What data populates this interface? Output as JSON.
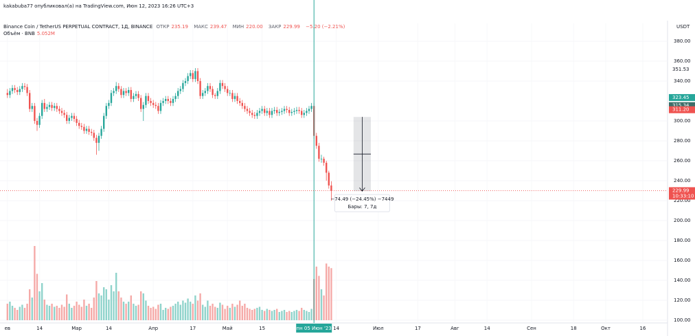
{
  "header": {
    "author_line": "kakabuba77 опубликовал(а) на TradingView.com, Июн 12, 2023 16:26 UTC+3"
  },
  "chart_data": {
    "type": "candlestick",
    "title": "Binance Coin / TetherUS PERPETUAL CONTRACT, 1Д, BINANCE",
    "ohlc_legend": [
      {
        "name": "ОТКР",
        "value": "235.19"
      },
      {
        "name": "МАКС",
        "value": "239.47"
      },
      {
        "name": "МИН",
        "value": "220.00"
      },
      {
        "name": "ЗАКР",
        "value": "229.99"
      }
    ],
    "change": "−5.20 (−2.21%)",
    "volume_legend": {
      "name": "Объём · BNB",
      "value": "5.052M"
    },
    "currency": "USDT",
    "up_color": "#26a69a",
    "down_color": "#ef5350",
    "volume_up_color": "#8fd3cb",
    "volume_down_color": "#f5a9a7",
    "grid": true,
    "candles": [
      [
        328,
        332,
        323,
        326
      ],
      [
        326,
        333,
        323,
        330
      ],
      [
        330,
        336,
        327,
        333
      ],
      [
        333,
        336,
        328,
        331
      ],
      [
        331,
        334,
        326,
        329
      ],
      [
        329,
        335,
        326,
        332
      ],
      [
        332,
        338,
        329,
        335
      ],
      [
        335,
        338,
        331,
        334
      ],
      [
        334,
        337,
        325,
        328
      ],
      [
        328,
        331,
        309,
        312
      ],
      [
        312,
        318,
        309,
        315
      ],
      [
        315,
        318,
        297,
        300
      ],
      [
        300,
        303,
        290,
        296
      ],
      [
        296,
        308,
        293,
        305
      ],
      [
        305,
        321,
        302,
        318
      ],
      [
        318,
        322,
        309,
        312
      ],
      [
        312,
        317,
        309,
        314
      ],
      [
        314,
        319,
        311,
        316
      ],
      [
        316,
        319,
        310,
        313
      ],
      [
        313,
        318,
        310,
        315
      ],
      [
        315,
        318,
        309,
        312
      ],
      [
        312,
        315,
        307,
        310
      ],
      [
        310,
        313,
        305,
        308
      ],
      [
        308,
        311,
        303,
        306
      ],
      [
        306,
        309,
        297,
        300
      ],
      [
        300,
        306,
        297,
        303
      ],
      [
        303,
        308,
        300,
        305
      ],
      [
        305,
        308,
        299,
        302
      ],
      [
        302,
        305,
        295,
        298
      ],
      [
        298,
        301,
        292,
        295
      ],
      [
        295,
        298,
        291,
        294
      ],
      [
        294,
        297,
        287,
        290
      ],
      [
        290,
        295,
        287,
        292
      ],
      [
        292,
        295,
        286,
        289
      ],
      [
        289,
        292,
        285,
        288
      ],
      [
        288,
        291,
        280,
        283
      ],
      [
        283,
        286,
        266,
        278
      ],
      [
        278,
        288,
        270,
        285
      ],
      [
        285,
        295,
        282,
        292
      ],
      [
        292,
        308,
        289,
        305
      ],
      [
        305,
        318,
        302,
        315
      ],
      [
        315,
        321,
        312,
        318
      ],
      [
        318,
        331,
        315,
        328
      ],
      [
        328,
        333,
        325,
        330
      ],
      [
        330,
        339,
        327,
        335
      ],
      [
        335,
        338,
        329,
        332
      ],
      [
        332,
        335,
        323,
        326
      ],
      [
        326,
        333,
        323,
        330
      ],
      [
        330,
        333,
        325,
        328
      ],
      [
        328,
        334,
        325,
        331
      ],
      [
        331,
        334,
        319,
        322
      ],
      [
        322,
        328,
        319,
        325
      ],
      [
        325,
        330,
        322,
        327
      ],
      [
        327,
        330,
        320,
        323
      ],
      [
        323,
        326,
        309,
        312
      ],
      [
        312,
        319,
        300,
        316
      ],
      [
        316,
        328,
        313,
        325
      ],
      [
        325,
        328,
        317,
        320
      ],
      [
        320,
        323,
        315,
        318
      ],
      [
        318,
        321,
        313,
        316
      ],
      [
        316,
        319,
        312,
        315
      ],
      [
        315,
        318,
        307,
        310
      ],
      [
        310,
        321,
        307,
        318
      ],
      [
        318,
        323,
        315,
        320
      ],
      [
        320,
        325,
        317,
        322
      ],
      [
        322,
        325,
        317,
        320
      ],
      [
        320,
        323,
        315,
        318
      ],
      [
        318,
        325,
        315,
        322
      ],
      [
        322,
        328,
        319,
        325
      ],
      [
        325,
        333,
        322,
        330
      ],
      [
        330,
        335,
        327,
        332
      ],
      [
        332,
        341,
        329,
        338
      ],
      [
        338,
        343,
        335,
        340
      ],
      [
        340,
        348,
        337,
        345
      ],
      [
        345,
        351,
        342,
        348
      ],
      [
        348,
        351,
        339,
        342
      ],
      [
        342,
        353,
        339,
        350
      ],
      [
        350,
        353,
        337,
        340
      ],
      [
        340,
        343,
        322,
        325
      ],
      [
        325,
        331,
        322,
        328
      ],
      [
        328,
        333,
        325,
        330
      ],
      [
        330,
        338,
        327,
        335
      ],
      [
        335,
        338,
        329,
        332
      ],
      [
        332,
        335,
        323,
        326
      ],
      [
        326,
        328,
        322,
        325
      ],
      [
        325,
        333,
        322,
        330
      ],
      [
        330,
        341,
        327,
        338
      ],
      [
        338,
        341,
        332,
        335
      ],
      [
        335,
        338,
        329,
        332
      ],
      [
        332,
        335,
        325,
        328
      ],
      [
        328,
        331,
        325,
        328
      ],
      [
        328,
        331,
        319,
        322
      ],
      [
        322,
        328,
        319,
        325
      ],
      [
        325,
        328,
        317,
        320
      ],
      [
        320,
        323,
        315,
        318
      ],
      [
        318,
        321,
        312,
        315
      ],
      [
        315,
        318,
        309,
        312
      ],
      [
        312,
        315,
        307,
        310
      ],
      [
        310,
        313,
        305,
        308
      ],
      [
        308,
        311,
        303,
        306
      ],
      [
        306,
        309,
        302,
        305
      ],
      [
        305,
        311,
        302,
        308
      ],
      [
        308,
        313,
        305,
        310
      ],
      [
        310,
        315,
        307,
        312
      ],
      [
        312,
        315,
        305,
        308
      ],
      [
        308,
        313,
        305,
        310
      ],
      [
        310,
        313,
        303,
        306
      ],
      [
        306,
        313,
        303,
        310
      ],
      [
        310,
        314,
        307,
        311
      ],
      [
        311,
        314,
        305,
        308
      ],
      [
        308,
        312,
        305,
        309
      ],
      [
        309,
        313,
        306,
        310
      ],
      [
        310,
        315,
        307,
        312
      ],
      [
        312,
        315,
        308,
        311
      ],
      [
        311,
        314,
        305,
        308
      ],
      [
        308,
        312,
        305,
        309
      ],
      [
        309,
        313,
        306,
        310
      ],
      [
        310,
        314,
        307,
        311
      ],
      [
        311,
        314,
        307,
        310
      ],
      [
        310,
        313,
        303,
        306
      ],
      [
        306,
        311,
        303,
        308
      ],
      [
        308,
        313,
        305,
        310
      ],
      [
        310,
        315,
        307,
        312
      ],
      [
        312,
        318,
        309,
        315
      ],
      [
        315,
        318,
        282,
        285
      ],
      [
        285,
        288,
        272,
        275
      ],
      [
        275,
        278,
        259,
        262
      ],
      [
        262,
        266,
        258,
        262
      ],
      [
        262,
        264,
        255,
        258
      ],
      [
        258,
        260,
        240,
        248
      ],
      [
        248,
        250,
        232,
        235.19
      ],
      [
        235.19,
        239.47,
        220,
        229.99
      ]
    ],
    "volumes": [
      1.6,
      1.8,
      1.4,
      1.2,
      1.0,
      1.3,
      1.5,
      1.2,
      1.6,
      3.0,
      2.2,
      7.2,
      4.5,
      2.8,
      3.6,
      2.0,
      1.5,
      1.4,
      1.6,
      1.3,
      1.4,
      1.2,
      1.5,
      1.3,
      2.5,
      1.6,
      1.2,
      1.4,
      1.8,
      1.5,
      1.3,
      2.0,
      1.4,
      1.6,
      1.2,
      2.2,
      3.8,
      2.6,
      2.4,
      3.2,
      3.0,
      2.0,
      3.4,
      2.8,
      4.6,
      2.8,
      2.2,
      1.8,
      1.6,
      1.8,
      2.4,
      1.6,
      1.4,
      1.5,
      2.8,
      2.6,
      1.9,
      1.4,
      1.2,
      1.3,
      1.1,
      1.5,
      1.6,
      1.0,
      1.2,
      1.1,
      1.3,
      1.4,
      1.6,
      1.8,
      1.5,
      1.9,
      1.7,
      2.1,
      1.8,
      1.6,
      2.4,
      1.9,
      2.6,
      1.5,
      1.3,
      1.9,
      1.4,
      1.6,
      1.3,
      1.2,
      1.7,
      1.5,
      1.1,
      1.4,
      1.2,
      1.6,
      1.3,
      1.5,
      1.9,
      1.4,
      1.6,
      1.2,
      1.1,
      1.0,
      1.1,
      1.2,
      1.3,
      1.0,
      0.9,
      1.1,
      1.0,
      0.9,
      1.0,
      1.1,
      0.8,
      0.9,
      1.0,
      0.8,
      0.9,
      0.8,
      0.9,
      1.0,
      0.9,
      1.2,
      1.0,
      0.9,
      0.8,
      1.1,
      4.0,
      5.2,
      4.3,
      3.0,
      2.4,
      5.5,
      5.2,
      5.052
    ],
    "ylim": [
      97.2,
      397.9
    ],
    "yticks": [
      {
        "value": 380,
        "label": "380.00"
      },
      {
        "value": 360,
        "label": "360.00"
      },
      {
        "value": 340,
        "label": "340.00"
      },
      {
        "value": 300,
        "label": "300.00"
      },
      {
        "value": 280,
        "label": "280.00"
      },
      {
        "value": 260,
        "label": "260.00"
      },
      {
        "value": 240,
        "label": "240.00"
      },
      {
        "value": 220,
        "label": "220.00"
      },
      {
        "value": 200,
        "label": "200.00"
      },
      {
        "value": 180,
        "label": "180.00"
      },
      {
        "value": 160,
        "label": "160.00"
      },
      {
        "value": 140,
        "label": "140.00"
      },
      {
        "value": 120,
        "label": "120.00"
      },
      {
        "value": 100,
        "label": "100.00"
      }
    ],
    "xlim": [
      -3,
      267
    ],
    "xticks": [
      {
        "value": 0,
        "label": "ев"
      },
      {
        "value": 13,
        "label": "14"
      },
      {
        "value": 28,
        "label": "Мар"
      },
      {
        "value": 41,
        "label": "14"
      },
      {
        "value": 59,
        "label": "Апр"
      },
      {
        "value": 75,
        "label": "17"
      },
      {
        "value": 89,
        "label": "Май"
      },
      {
        "value": 103,
        "label": "15"
      },
      {
        "value": 133,
        "label": "14"
      },
      {
        "value": 150,
        "label": "Июл"
      },
      {
        "value": 166,
        "label": "17"
      },
      {
        "value": 181,
        "label": "Авг"
      },
      {
        "value": 194,
        "label": "14"
      },
      {
        "value": 212,
        "label": "Сен"
      },
      {
        "value": 229,
        "label": "18"
      },
      {
        "value": 242,
        "label": "Окт"
      },
      {
        "value": 257,
        "label": "16"
      }
    ],
    "crosshair": {
      "value": 124,
      "label": "пн 05 Июн '23"
    },
    "price_tags": [
      {
        "value": 351.53,
        "label": "351.53",
        "color": "#ffffff",
        "text_color": "#131722"
      },
      {
        "value": 323.45,
        "label": "323.45",
        "color": "#26a69a",
        "text_color": "#ffffff"
      },
      {
        "value": 315.34,
        "label": "315.34",
        "color": "#3d6e69",
        "text_color": "#ffffff"
      },
      {
        "value": 311.2,
        "label": "311.20",
        "color": "#ef5350",
        "text_color": "#ffffff"
      }
    ],
    "last_price": {
      "value": 229.99,
      "label": "229.99",
      "countdown": "10:33:10",
      "color": "#ef5350"
    },
    "measure": {
      "from": 303.98,
      "to": 229.49,
      "label": "−74.49 (−24.45%) −7449",
      "bars_label": "Бары: 7, 7д"
    }
  }
}
